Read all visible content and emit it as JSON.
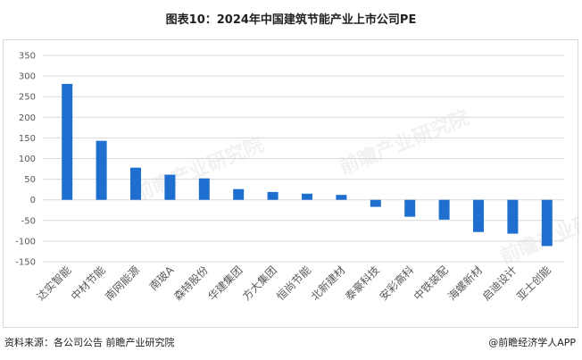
{
  "header": {
    "title": "图表10：2024年中国建筑节能产业上市公司PE"
  },
  "footer": {
    "source": "资料来源：各公司公告 前瞻产业研究院",
    "brand": "@前瞻经济学人APP"
  },
  "watermark": {
    "text": "前瞻产业研究院"
  },
  "colors": {
    "bar": "#1f6fd1",
    "grid": "#d9d9d9",
    "axis_text": "#595959"
  },
  "chart_data": {
    "type": "bar",
    "title": "图表10：2024年中国建筑节能产业上市公司PE",
    "xlabel": "",
    "ylabel": "",
    "ylim": [
      -150,
      350
    ],
    "yticks": [
      350,
      300,
      250,
      200,
      150,
      100,
      50,
      0,
      -50,
      -100,
      -150
    ],
    "grid": true,
    "legend": "none",
    "categories": [
      "达实智能",
      "中材节能",
      "南网能源",
      "南玻A",
      "森特股份",
      "华建集团",
      "方大集团",
      "恒尚节能",
      "北新建材",
      "泰豪科技",
      "安彩高科",
      "中铁装配",
      "海螺新材",
      "启迪设计",
      "亚士创能"
    ],
    "values": [
      281,
      143,
      78,
      61,
      52,
      26,
      19,
      15,
      12,
      -17,
      -41,
      -48,
      -78,
      -82,
      -112
    ]
  }
}
